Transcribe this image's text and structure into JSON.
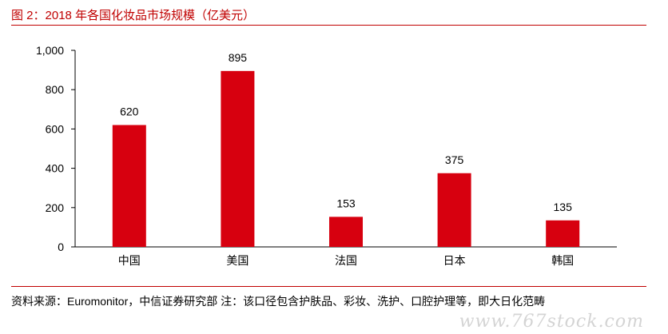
{
  "figure": {
    "title": "图 2：2018 年各国化妆品市场规模（亿美元）",
    "source_note": "资料来源：Euromonitor，中信证券研究部 注：该口径包含护肤品、彩妆、洗护、口腔护理等，即大日化范畴",
    "watermark": "www.767stock.com"
  },
  "colors": {
    "accent": "#c00000",
    "bar": "#d7000f"
  },
  "chart_data": {
    "type": "bar",
    "title": "图 2：2018 年各国化妆品市场规模（亿美元）",
    "xlabel": "",
    "ylabel": "",
    "categories": [
      "中国",
      "美国",
      "法国",
      "日本",
      "韩国"
    ],
    "values": [
      620,
      895,
      153,
      375,
      135
    ],
    "value_labels": [
      "620",
      "895",
      "153",
      "375",
      "135"
    ],
    "ylim": [
      0,
      1000
    ],
    "yticks": [
      0,
      200,
      400,
      600,
      800,
      1000
    ],
    "ytick_labels": [
      "0",
      "200",
      "400",
      "600",
      "800",
      "1,000"
    ],
    "grid": false,
    "legend": "none"
  }
}
